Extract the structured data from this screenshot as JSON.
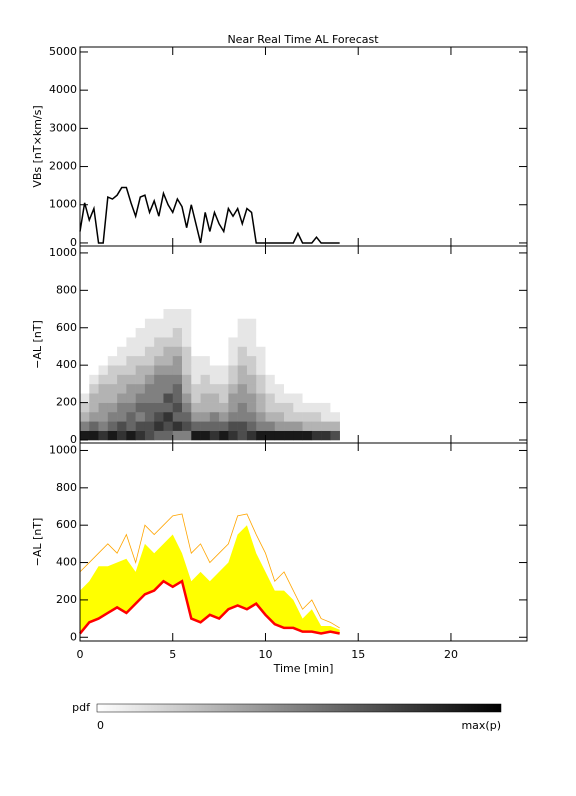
{
  "chart_data": [
    {
      "type": "line",
      "title": "Near Real Time AL Forecast",
      "ylabel": "VBs [nT×km/s]",
      "ylim": [
        -80,
        5130
      ],
      "yticks": [
        0,
        1000,
        2000,
        3000,
        4000,
        5000
      ],
      "color": "#000000",
      "x": [
        0,
        0.25,
        0.5,
        0.75,
        1,
        1.25,
        1.5,
        1.75,
        2,
        2.25,
        2.5,
        2.75,
        3,
        3.25,
        3.5,
        3.75,
        4,
        4.25,
        4.5,
        4.75,
        5,
        5.25,
        5.5,
        5.75,
        6,
        6.25,
        6.5,
        6.75,
        7,
        7.25,
        7.5,
        7.75,
        8,
        8.25,
        8.5,
        8.75,
        9,
        9.25,
        9.5,
        9.75,
        10,
        10.25,
        10.5,
        10.75,
        11,
        11.25,
        11.5,
        11.75,
        12,
        12.25,
        12.5,
        12.75,
        13,
        13.25,
        13.5,
        13.75,
        14
      ],
      "values": [
        300,
        1050,
        600,
        900,
        0,
        0,
        1200,
        1150,
        1250,
        1450,
        1450,
        1050,
        700,
        1200,
        1250,
        800,
        1100,
        700,
        1300,
        1000,
        800,
        1150,
        950,
        400,
        1000,
        500,
        0,
        800,
        300,
        800,
        500,
        300,
        900,
        700,
        900,
        500,
        900,
        800,
        0,
        0,
        0,
        0,
        0,
        0,
        0,
        0,
        0,
        250,
        0,
        0,
        0,
        150,
        0,
        0,
        0,
        0,
        0
      ]
    },
    {
      "type": "heatmap",
      "ylabel": "−AL [nT]",
      "ylim": [
        -16,
        1037
      ],
      "yticks": [
        0,
        200,
        400,
        600,
        800,
        1000
      ],
      "xbins": [
        0,
        0.5,
        1,
        1.5,
        2,
        2.5,
        3,
        3.5,
        4,
        4.5,
        5,
        5.5,
        6,
        6.5,
        7,
        7.5,
        8,
        8.5,
        9,
        9.5,
        10,
        10.5,
        11,
        11.5,
        12,
        12.5,
        13,
        13.5,
        14
      ],
      "ybins": [
        0,
        50,
        100,
        150,
        200,
        250,
        300,
        350,
        400,
        450,
        500,
        550,
        600,
        650,
        700
      ],
      "z": [
        [
          0.9,
          0.5,
          0.3,
          0.2,
          0.1,
          0,
          0,
          0,
          0,
          0,
          0,
          0,
          0,
          0
        ],
        [
          0.9,
          0.6,
          0.4,
          0.3,
          0.3,
          0.2,
          0.1,
          0,
          0,
          0,
          0,
          0,
          0,
          0
        ],
        [
          0.8,
          0.5,
          0.4,
          0.4,
          0.3,
          0.3,
          0.2,
          0.1,
          0,
          0,
          0,
          0,
          0,
          0
        ],
        [
          0.9,
          0.6,
          0.5,
          0.4,
          0.3,
          0.3,
          0.2,
          0.2,
          0.1,
          0,
          0,
          0,
          0,
          0
        ],
        [
          0.8,
          0.7,
          0.5,
          0.5,
          0.4,
          0.3,
          0.3,
          0.2,
          0.1,
          0.1,
          0,
          0,
          0,
          0
        ],
        [
          0.9,
          0.6,
          0.6,
          0.5,
          0.4,
          0.4,
          0.3,
          0.2,
          0.2,
          0.1,
          0.1,
          0,
          0,
          0
        ],
        [
          0.8,
          0.7,
          0.5,
          0.6,
          0.5,
          0.4,
          0.3,
          0.3,
          0.2,
          0.1,
          0.1,
          0.1,
          0,
          0
        ],
        [
          0.7,
          0.7,
          0.6,
          0.6,
          0.5,
          0.5,
          0.4,
          0.3,
          0.2,
          0.2,
          0.1,
          0.1,
          0.1,
          0
        ],
        [
          0.6,
          0.8,
          0.7,
          0.6,
          0.5,
          0.5,
          0.5,
          0.4,
          0.3,
          0.2,
          0.2,
          0.1,
          0.1,
          0
        ],
        [
          0.6,
          0.7,
          0.8,
          0.6,
          0.7,
          0.5,
          0.5,
          0.4,
          0.3,
          0.3,
          0.2,
          0.1,
          0.1,
          0.1
        ],
        [
          0.5,
          0.8,
          0.6,
          0.7,
          0.6,
          0.6,
          0.5,
          0.4,
          0.4,
          0.3,
          0.2,
          0.2,
          0.1,
          0.1
        ],
        [
          0.5,
          0.7,
          0.6,
          0.5,
          0.4,
          0.3,
          0.3,
          0.2,
          0.2,
          0.2,
          0.1,
          0.1,
          0.1,
          0.1
        ],
        [
          0.9,
          0.6,
          0.4,
          0.3,
          0.2,
          0.2,
          0.1,
          0.1,
          0.1,
          0,
          0,
          0,
          0,
          0
        ],
        [
          0.9,
          0.6,
          0.4,
          0.3,
          0.3,
          0.2,
          0.2,
          0.1,
          0.1,
          0,
          0,
          0,
          0,
          0
        ],
        [
          0.8,
          0.6,
          0.5,
          0.3,
          0.3,
          0.2,
          0.1,
          0.1,
          0,
          0,
          0,
          0,
          0,
          0
        ],
        [
          0.9,
          0.6,
          0.4,
          0.3,
          0.2,
          0.2,
          0.1,
          0.1,
          0,
          0,
          0,
          0,
          0,
          0
        ],
        [
          0.8,
          0.7,
          0.5,
          0.4,
          0.4,
          0.3,
          0.2,
          0.2,
          0.1,
          0.1,
          0.1,
          0,
          0,
          0
        ],
        [
          0.7,
          0.7,
          0.5,
          0.5,
          0.4,
          0.4,
          0.3,
          0.3,
          0.2,
          0.2,
          0.1,
          0.1,
          0.1,
          0
        ],
        [
          0.8,
          0.6,
          0.5,
          0.4,
          0.4,
          0.3,
          0.3,
          0.2,
          0.2,
          0.1,
          0.1,
          0.1,
          0.1,
          0
        ],
        [
          0.9,
          0.5,
          0.4,
          0.3,
          0.3,
          0.2,
          0.2,
          0.1,
          0.1,
          0.1,
          0,
          0,
          0,
          0
        ],
        [
          0.9,
          0.5,
          0.3,
          0.2,
          0.2,
          0.1,
          0.1,
          0,
          0,
          0,
          0,
          0,
          0,
          0
        ],
        [
          0.9,
          0.4,
          0.3,
          0.2,
          0.1,
          0.1,
          0,
          0,
          0,
          0,
          0,
          0,
          0,
          0
        ],
        [
          0.9,
          0.4,
          0.2,
          0.2,
          0.1,
          0,
          0,
          0,
          0,
          0,
          0,
          0,
          0,
          0
        ],
        [
          0.9,
          0.4,
          0.2,
          0.1,
          0.1,
          0,
          0,
          0,
          0,
          0,
          0,
          0,
          0,
          0
        ],
        [
          0.9,
          0.3,
          0.2,
          0.1,
          0,
          0,
          0,
          0,
          0,
          0,
          0,
          0,
          0,
          0
        ],
        [
          0.8,
          0.3,
          0.2,
          0.1,
          0,
          0,
          0,
          0,
          0,
          0,
          0,
          0,
          0,
          0
        ],
        [
          0.8,
          0.3,
          0.1,
          0.1,
          0,
          0,
          0,
          0,
          0,
          0,
          0,
          0,
          0,
          0
        ],
        [
          0.7,
          0.3,
          0.1,
          0,
          0,
          0,
          0,
          0,
          0,
          0,
          0,
          0,
          0,
          0
        ]
      ],
      "zlim": [
        0,
        1
      ],
      "zticks": [
        0,
        {
          "value": 1,
          "label": "max(p)"
        }
      ],
      "colorbar_label": "pdf"
    },
    {
      "type": "band",
      "ylabel": "−AL [nT]",
      "xlabel": "Time [min]",
      "xlim": [
        0,
        24.1
      ],
      "xticks": [
        0,
        5,
        10,
        15,
        20
      ],
      "ylim": [
        -20,
        1040
      ],
      "yticks": [
        0,
        200,
        400,
        600,
        800,
        1000
      ],
      "x": [
        0,
        0.5,
        1,
        1.5,
        2,
        2.5,
        3,
        3.5,
        4,
        4.5,
        5,
        5.5,
        6,
        6.5,
        7,
        7.5,
        8,
        8.5,
        9,
        9.5,
        10,
        10.5,
        11,
        11.5,
        12,
        12.5,
        13,
        13.5,
        14
      ],
      "series": [
        {
          "color": "#ffa500",
          "values": [
            350,
            400,
            450,
            500,
            450,
            550,
            400,
            600,
            550,
            600,
            650,
            660,
            450,
            500,
            400,
            450,
            500,
            650,
            660,
            550,
            450,
            300,
            350,
            250,
            150,
            200,
            100,
            80,
            50
          ]
        },
        {
          "color": "#ffff00",
          "values": [
            250,
            300,
            380,
            380,
            400,
            420,
            350,
            500,
            450,
            500,
            550,
            450,
            300,
            350,
            300,
            350,
            400,
            550,
            600,
            450,
            350,
            250,
            250,
            200,
            100,
            150,
            60,
            60,
            40
          ]
        },
        {
          "color": "#ff0000",
          "values": [
            20,
            80,
            100,
            130,
            160,
            130,
            180,
            230,
            250,
            300,
            270,
            300,
            100,
            80,
            120,
            100,
            150,
            170,
            150,
            180,
            120,
            70,
            50,
            50,
            30,
            30,
            20,
            30,
            20
          ]
        }
      ]
    }
  ]
}
